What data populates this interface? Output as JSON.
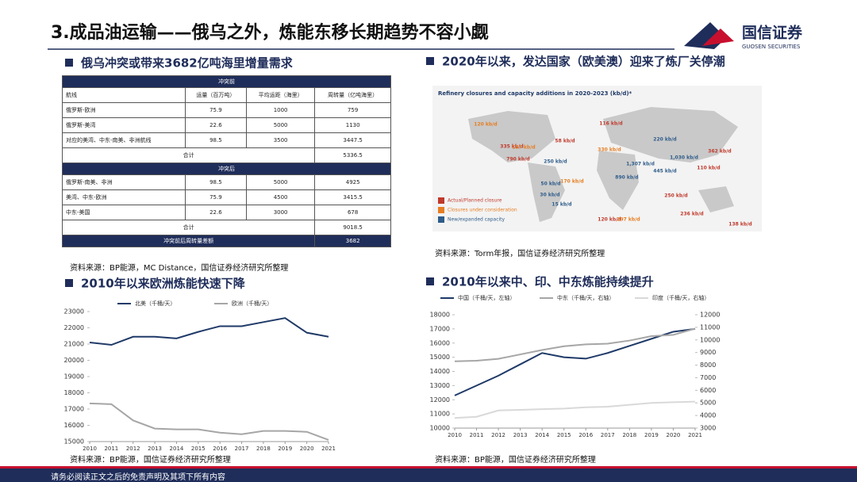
{
  "header": {
    "title": "3.成品油运输——俄乌之外，炼能东移长期趋势不容小觑",
    "logo_cn": "国信证券",
    "logo_en": "GUOSEN SECURITIES"
  },
  "sections": {
    "table_title": "俄乌冲突或带来3682亿吨海里增量需求",
    "table_source": "资料来源：BP能源，MC Distance，国信证券经济研究所整理",
    "map_title": "2020年以来，发达国家（欧美澳）迎来了炼厂关停潮",
    "map_source": "资料来源：Torm年报，国信证券经济研究所整理",
    "left_chart_title": "2010年以来欧洲炼能快速下降",
    "left_chart_source": "资料来源：BP能源，国信证券经济研究所整理",
    "right_chart_title": "2010年以来中、印、中东炼能持续提升",
    "right_chart_source": "资料来源：BP能源，国信证券经济研究所整理"
  },
  "table": {
    "pre_title": "冲突前",
    "columns": [
      "航线",
      "运量（百万吨）",
      "平均运距（海里）",
      "周转量（亿吨海里）"
    ],
    "pre_rows": [
      [
        "俄罗斯-欧洲",
        "75.9",
        "1000",
        "759"
      ],
      [
        "俄罗斯-美湾",
        "22.6",
        "5000",
        "1130"
      ],
      [
        "对应的美湾、中东-南美、非洲航线",
        "98.5",
        "3500",
        "3447.5"
      ]
    ],
    "pre_total": [
      "合计",
      "5336.5"
    ],
    "post_title": "冲突后",
    "post_rows": [
      [
        "俄罗斯-南美、非洲",
        "98.5",
        "5000",
        "4925"
      ],
      [
        "美湾、中东-欧洲",
        "75.9",
        "4500",
        "3415.5"
      ],
      [
        "中东-美国",
        "22.6",
        "3000",
        "678"
      ]
    ],
    "post_total": [
      "合计",
      "9018.5"
    ],
    "diff": [
      "冲突前后周转量差额",
      "3682"
    ]
  },
  "map": {
    "title": "Refinery closures and capacity additions in 2020-2023 (kb/d)*",
    "legend": [
      {
        "text": "Actual/Planned closure",
        "color": "#c0392b"
      },
      {
        "text": "Closures under consideration",
        "color": "#e67e22"
      },
      {
        "text": "New/expanded capacity",
        "color": "#2e5c8a"
      }
    ],
    "labels": [
      {
        "text": "120 kb/d",
        "color": "#e67e22"
      },
      {
        "text": "116 kb/d",
        "color": "#c0392b"
      },
      {
        "text": "335 kb/d",
        "color": "#c0392b"
      },
      {
        "text": "137 kb/d",
        "color": "#e67e22"
      },
      {
        "text": "58 kb/d",
        "color": "#c0392b"
      },
      {
        "text": "790 kb/d",
        "color": "#c0392b"
      },
      {
        "text": "250 kb/d",
        "color": "#2e5c8a"
      },
      {
        "text": "330 kb/d",
        "color": "#e67e22"
      },
      {
        "text": "220 kb/d",
        "color": "#2e5c8a"
      },
      {
        "text": "1,030 kb/d",
        "color": "#2e5c8a"
      },
      {
        "text": "1,307 kb/d",
        "color": "#2e5c8a"
      },
      {
        "text": "362 kb/d",
        "color": "#c0392b"
      },
      {
        "text": "110 kb/d",
        "color": "#c0392b"
      },
      {
        "text": "445 kb/d",
        "color": "#2e5c8a"
      },
      {
        "text": "890 kb/d",
        "color": "#2e5c8a"
      },
      {
        "text": "50 kb/d",
        "color": "#2e5c8a"
      },
      {
        "text": "170 kb/d",
        "color": "#e67e22"
      },
      {
        "text": "30 kb/d",
        "color": "#2e5c8a"
      },
      {
        "text": "15 kb/d",
        "color": "#2e5c8a"
      },
      {
        "text": "120 kb/d",
        "color": "#c0392b"
      },
      {
        "text": "297 kb/d",
        "color": "#e67e22"
      },
      {
        "text": "250 kb/d",
        "color": "#c0392b"
      },
      {
        "text": "236 kb/d",
        "color": "#c0392b"
      },
      {
        "text": "138 kb/d",
        "color": "#c0392b"
      }
    ]
  },
  "chart_data": [
    {
      "type": "line",
      "x": [
        2010,
        2011,
        2012,
        2013,
        2014,
        2015,
        2016,
        2017,
        2018,
        2019,
        2020,
        2021
      ],
      "xlim": [
        2010,
        2021
      ],
      "ylim": [
        15000,
        23000
      ],
      "yticks": [
        15000,
        16000,
        17000,
        18000,
        19000,
        20000,
        21000,
        22000,
        23000
      ],
      "series": [
        {
          "name": "北美（千桶/天）",
          "color": "#1f3a68",
          "values": [
            21100,
            20950,
            21450,
            21450,
            21350,
            21750,
            22100,
            22100,
            22350,
            22600,
            21700,
            21450
          ]
        },
        {
          "name": "欧洲（千桶/天）",
          "color": "#a6a6a6",
          "values": [
            17350,
            17300,
            16300,
            15800,
            15750,
            15750,
            15550,
            15450,
            15650,
            15650,
            15600,
            15100
          ]
        }
      ]
    },
    {
      "type": "line",
      "x": [
        2010,
        2011,
        2012,
        2013,
        2014,
        2015,
        2016,
        2017,
        2018,
        2019,
        2020,
        2021
      ],
      "xlim": [
        2010,
        2021
      ],
      "ylim": [
        10000,
        18000
      ],
      "yticks": [
        10000,
        11000,
        12000,
        13000,
        14000,
        15000,
        16000,
        17000,
        18000
      ],
      "y2lim": [
        3000,
        12000
      ],
      "y2ticks": [
        3000,
        4000,
        5000,
        6000,
        7000,
        8000,
        9000,
        10000,
        11000,
        12000
      ],
      "series": [
        {
          "name": "中国（千桶/天，左轴）",
          "color": "#1f3a68",
          "values": [
            12300,
            13000,
            13700,
            14500,
            15300,
            15000,
            14900,
            15300,
            15800,
            16300,
            16800,
            17000
          ]
        },
        {
          "name": "中东（千桶/天，右轴）",
          "color": "#a6a6a6",
          "axis": "y2",
          "values": [
            8300,
            8350,
            8500,
            8850,
            9200,
            9500,
            9650,
            9700,
            9950,
            10300,
            10400,
            10900
          ]
        },
        {
          "name": "印度（千桶/天，右轴）",
          "color": "#d9d9d9",
          "axis": "y2",
          "values": [
            3800,
            3900,
            4400,
            4450,
            4500,
            4550,
            4650,
            4700,
            4850,
            5000,
            5050,
            5100
          ]
        }
      ]
    }
  ],
  "footer": "请务必阅读正文之后的免责声明及其项下所有内容"
}
